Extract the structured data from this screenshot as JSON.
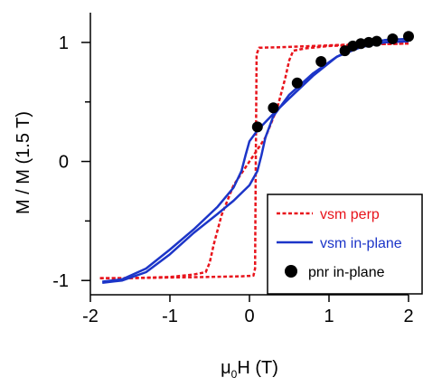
{
  "chart_data": {
    "type": "line",
    "xlabel_main": "μ",
    "xlabel_sub": "0",
    "xlabel_rest": "H (T)",
    "ylabel": "M / M (1.5 T)",
    "xlim": [
      -2,
      2
    ],
    "ylim": [
      -1.12,
      1.25
    ],
    "x_ticks": [
      "-2",
      "-1",
      "0",
      "1",
      "2"
    ],
    "x_tick_values": [
      -2,
      -1,
      0,
      1,
      2
    ],
    "y_ticks": [
      "-1",
      "0",
      "1"
    ],
    "y_tick_values": [
      -1,
      0,
      1
    ],
    "y_minor_ticks": [
      -0.5,
      0.5
    ],
    "grid": false,
    "legend_position": "lower-right",
    "series": [
      {
        "name": "vsm perp",
        "style": "dashed",
        "color": "#e8141c",
        "branches": [
          [
            [
              -1.88,
              -0.98
            ],
            [
              -1.5,
              -0.98
            ],
            [
              -1.0,
              -0.975
            ],
            [
              -0.5,
              -0.97
            ],
            [
              -0.1,
              -0.965
            ],
            [
              0.05,
              -0.96
            ],
            [
              0.07,
              -0.9
            ],
            [
              0.08,
              0.0
            ],
            [
              0.09,
              0.9
            ],
            [
              0.12,
              0.955
            ],
            [
              0.4,
              0.96
            ],
            [
              0.8,
              0.97
            ],
            [
              1.2,
              0.98
            ],
            [
              1.6,
              0.985
            ],
            [
              2.0,
              0.99
            ]
          ],
          [
            [
              2.0,
              0.99
            ],
            [
              1.5,
              0.985
            ],
            [
              1.0,
              0.97
            ],
            [
              0.7,
              0.95
            ],
            [
              0.55,
              0.93
            ],
            [
              0.5,
              0.85
            ],
            [
              0.45,
              0.7
            ],
            [
              0.35,
              0.45
            ],
            [
              0.2,
              0.2
            ],
            [
              0.0,
              0.0
            ],
            [
              -0.2,
              -0.2
            ],
            [
              -0.35,
              -0.45
            ],
            [
              -0.45,
              -0.7
            ],
            [
              -0.5,
              -0.85
            ],
            [
              -0.55,
              -0.93
            ],
            [
              -0.7,
              -0.95
            ],
            [
              -1.0,
              -0.97
            ],
            [
              -1.5,
              -0.98
            ],
            [
              -1.88,
              -0.98
            ]
          ]
        ]
      },
      {
        "name": "vsm in-plane",
        "style": "solid",
        "color": "#1c35c8",
        "branches": [
          [
            [
              -1.85,
              -1.02
            ],
            [
              -1.6,
              -1.0
            ],
            [
              -1.3,
              -0.93
            ],
            [
              -1.0,
              -0.78
            ],
            [
              -0.7,
              -0.6
            ],
            [
              -0.4,
              -0.44
            ],
            [
              -0.2,
              -0.33
            ],
            [
              0.0,
              -0.2
            ],
            [
              0.1,
              -0.08
            ],
            [
              0.15,
              0.05
            ],
            [
              0.2,
              0.2
            ],
            [
              0.3,
              0.38
            ],
            [
              0.5,
              0.56
            ],
            [
              0.8,
              0.74
            ],
            [
              1.1,
              0.88
            ],
            [
              1.4,
              0.96
            ],
            [
              1.7,
              1.0
            ],
            [
              2.0,
              1.01
            ]
          ],
          [
            [
              2.0,
              1.03
            ],
            [
              1.7,
              1.02
            ],
            [
              1.4,
              0.98
            ],
            [
              1.1,
              0.88
            ],
            [
              0.8,
              0.72
            ],
            [
              0.5,
              0.53
            ],
            [
              0.3,
              0.4
            ],
            [
              0.1,
              0.26
            ],
            [
              0.0,
              0.17
            ],
            [
              -0.05,
              0.05
            ],
            [
              -0.1,
              -0.08
            ],
            [
              -0.2,
              -0.22
            ],
            [
              -0.4,
              -0.38
            ],
            [
              -0.7,
              -0.57
            ],
            [
              -1.0,
              -0.74
            ],
            [
              -1.3,
              -0.9
            ],
            [
              -1.6,
              -0.99
            ],
            [
              -1.85,
              -1.01
            ]
          ]
        ]
      },
      {
        "name": "pnr in-plane",
        "style": "points",
        "color": "#000000",
        "points": [
          [
            0.1,
            0.29
          ],
          [
            0.3,
            0.45
          ],
          [
            0.6,
            0.66
          ],
          [
            0.9,
            0.84
          ],
          [
            1.2,
            0.93
          ],
          [
            1.3,
            0.97
          ],
          [
            1.4,
            0.99
          ],
          [
            1.5,
            1.0
          ],
          [
            1.6,
            1.01
          ],
          [
            1.8,
            1.03
          ],
          [
            2.0,
            1.05
          ]
        ]
      }
    ]
  }
}
